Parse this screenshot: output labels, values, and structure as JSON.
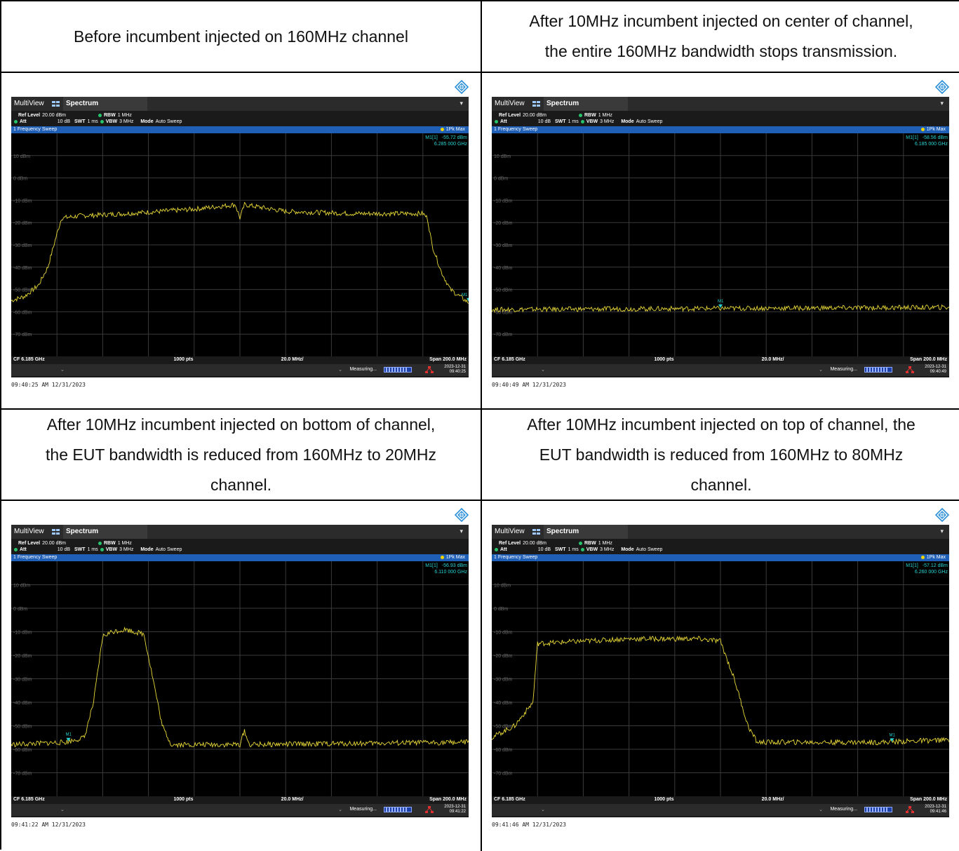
{
  "captions": {
    "top_left": [
      "Before incumbent injected on 160MHz channel"
    ],
    "top_right": [
      "After 10MHz incumbent injected on center of channel,",
      "the entire 160MHz bandwidth stops transmission."
    ],
    "mid_left": [
      "After 10MHz incumbent injected on bottom of channel,",
      "the EUT bandwidth is reduced from 160MHz to 20MHz",
      "channel."
    ],
    "mid_right": [
      "After 10MHz incumbent injected on top of channel, the",
      "EUT bandwidth is reduced from 160MHz to 80MHz",
      "channel."
    ]
  },
  "common": {
    "multiview": "MultiView",
    "tab": "Spectrum",
    "ref_level_label": "Ref Level",
    "ref_level_value": "20.00 dBm",
    "att_label": "Att",
    "att_value": "10 dB",
    "swt_label": "SWT",
    "swt_value": "1 ms",
    "rbw_label": "RBW",
    "rbw_value": "1 MHz",
    "vbw_label": "VBW",
    "vbw_value": "3 MHz",
    "mode_label": "Mode",
    "mode_value": "Auto Sweep",
    "sweep_title": "1 Frequency Sweep",
    "trace": "1Pk Max",
    "cf": "CF 6.185 GHz",
    "pts": "1000 pts",
    "div": "20.0 MHz/",
    "span": "Span 200.0 MHz",
    "measuring": "Measuring...",
    "marker": "M1",
    "y_labels": [
      "10 dBm",
      "0 dBm",
      "-10 dBm",
      "-20 dBm",
      "-30 dBm",
      "-40 dBm",
      "-50 dBm",
      "-60 dBm",
      "-70 dBm"
    ]
  },
  "screens": [
    {
      "m1_label": "M1[1]",
      "m1_level": "-55.72 dBm",
      "m1_freq": "6.285 000 GHz",
      "date": "2023-12-31",
      "time": "09:40:25",
      "timestamp": "09:40:25 AM  12/31/2023"
    },
    {
      "m1_label": "M1[1]",
      "m1_level": "-58.56 dBm",
      "m1_freq": "6.185 000 GHz",
      "date": "2023-12-31",
      "time": "09:40:49",
      "timestamp": "09:40:49 AM  12/31/2023"
    },
    {
      "m1_label": "M1[1]",
      "m1_level": "-56.93 dBm",
      "m1_freq": "6.110 000 GHz",
      "date": "2023-12-31",
      "time": "09:41:22",
      "timestamp": "09:41:22 AM  12/31/2023"
    },
    {
      "m1_label": "M1[1]",
      "m1_level": "-57.12 dBm",
      "m1_freq": "6.260 000 GHz",
      "date": "2023-12-31",
      "time": "09:41:46",
      "timestamp": "09:41:46 AM  12/31/2023"
    }
  ],
  "chart_data": [
    {
      "type": "line",
      "series": [
        {
          "values": [
            [
              0,
              -55
            ],
            [
              3,
              -53
            ],
            [
              6,
              -48
            ],
            [
              8,
              -40
            ],
            [
              10,
              -25
            ],
            [
              11,
              -18
            ],
            [
              15,
              -17
            ],
            [
              25,
              -16
            ],
            [
              40,
              -14
            ],
            [
              49,
              -12
            ],
            [
              50,
              -18
            ],
            [
              51,
              -12
            ],
            [
              60,
              -15
            ],
            [
              75,
              -16
            ],
            [
              90,
              -16
            ],
            [
              91,
              -18
            ],
            [
              92,
              -30
            ],
            [
              94,
              -42
            ],
            [
              96,
              -50
            ],
            [
              100,
              -56
            ]
          ]
        }
      ],
      "ylim": [
        -80,
        20
      ],
      "marker": {
        "x": 100,
        "y": -55.72
      }
    },
    {
      "type": "line",
      "series": [
        {
          "values": [
            [
              0,
              -59
            ],
            [
              50,
              -58.5
            ],
            [
              100,
              -58
            ]
          ]
        }
      ],
      "ylim": [
        -80,
        20
      ],
      "marker": {
        "x": 50,
        "y": -58.56
      }
    },
    {
      "type": "line",
      "series": [
        {
          "values": [
            [
              0,
              -58
            ],
            [
              12,
              -57
            ],
            [
              16,
              -55
            ],
            [
              18,
              -40
            ],
            [
              20,
              -12
            ],
            [
              22,
              -10
            ],
            [
              25,
              -9
            ],
            [
              29,
              -11
            ],
            [
              31,
              -30
            ],
            [
              33,
              -50
            ],
            [
              35,
              -58
            ],
            [
              50,
              -58
            ],
            [
              51,
              -52
            ],
            [
              52,
              -58
            ],
            [
              100,
              -57
            ]
          ]
        }
      ],
      "ylim": [
        -80,
        20
      ],
      "marker": {
        "x": 12.5,
        "y": -56.93
      }
    },
    {
      "type": "line",
      "series": [
        {
          "values": [
            [
              0,
              -55
            ],
            [
              5,
              -50
            ],
            [
              9,
              -40
            ],
            [
              10,
              -15
            ],
            [
              30,
              -13
            ],
            [
              45,
              -13
            ],
            [
              50,
              -14
            ],
            [
              53,
              -30
            ],
            [
              56,
              -50
            ],
            [
              58,
              -57
            ],
            [
              85,
              -57
            ],
            [
              100,
              -56
            ]
          ]
        }
      ],
      "ylim": [
        -80,
        20
      ],
      "marker": {
        "x": 87.5,
        "y": -57.12
      }
    }
  ]
}
